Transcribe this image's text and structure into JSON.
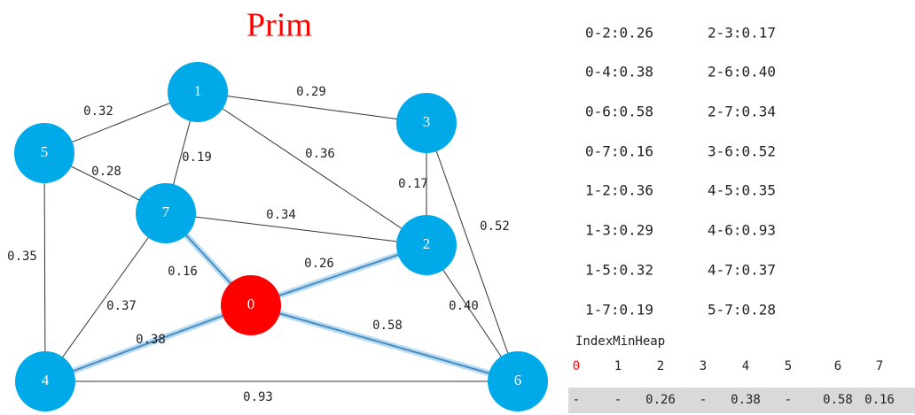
{
  "title": "Prim",
  "nodes": [
    {
      "label": "0",
      "color": "#ff0000"
    },
    {
      "label": "1",
      "color": "#00a9e8"
    },
    {
      "label": "2",
      "color": "#00a9e8"
    },
    {
      "label": "3",
      "color": "#00a9e8"
    },
    {
      "label": "4",
      "color": "#00a9e8"
    },
    {
      "label": "5",
      "color": "#00a9e8"
    },
    {
      "label": "6",
      "color": "#00a9e8"
    },
    {
      "label": "7",
      "color": "#00a9e8"
    }
  ],
  "edges": [
    {
      "from": 1,
      "to": 5,
      "label": "0.32",
      "highlight": false
    },
    {
      "from": 1,
      "to": 3,
      "label": "0.29",
      "highlight": false
    },
    {
      "from": 1,
      "to": 7,
      "label": "0.19",
      "highlight": false
    },
    {
      "from": 1,
      "to": 2,
      "label": "0.36",
      "highlight": false
    },
    {
      "from": 5,
      "to": 7,
      "label": "0.28",
      "highlight": false
    },
    {
      "from": 3,
      "to": 2,
      "label": "0.17",
      "highlight": false
    },
    {
      "from": 3,
      "to": 6,
      "label": "0.52",
      "highlight": false
    },
    {
      "from": 7,
      "to": 2,
      "label": "0.34",
      "highlight": false
    },
    {
      "from": 5,
      "to": 4,
      "label": "0.35",
      "highlight": false
    },
    {
      "from": 7,
      "to": 0,
      "label": "0.16",
      "highlight": true
    },
    {
      "from": 0,
      "to": 2,
      "label": "0.26",
      "highlight": true
    },
    {
      "from": 7,
      "to": 4,
      "label": "0.37",
      "highlight": false
    },
    {
      "from": 0,
      "to": 4,
      "label": "0.38",
      "highlight": true
    },
    {
      "from": 0,
      "to": 6,
      "label": "0.58",
      "highlight": true
    },
    {
      "from": 2,
      "to": 6,
      "label": "0.40",
      "highlight": false
    },
    {
      "from": 4,
      "to": 6,
      "label": "0.93",
      "highlight": false
    }
  ],
  "edge_list": [
    "0-2:0.26",
    "2-3:0.17",
    "0-4:0.38",
    "2-6:0.40",
    "0-6:0.58",
    "2-7:0.34",
    "0-7:0.16",
    "3-6:0.52",
    "1-2:0.36",
    "4-5:0.35",
    "1-3:0.29",
    "4-6:0.93",
    "1-5:0.32",
    "4-7:0.37",
    "1-7:0.19",
    "5-7:0.28"
  ],
  "heap": {
    "title": "IndexMinHeap",
    "indices": [
      "0",
      "1",
      "2",
      "3",
      "4",
      "5",
      "6",
      "7"
    ],
    "active_index_color": "#ff0000",
    "values": [
      "-",
      "-",
      "0.26",
      "-",
      "0.38",
      "-",
      "0.58",
      "0.16"
    ]
  }
}
